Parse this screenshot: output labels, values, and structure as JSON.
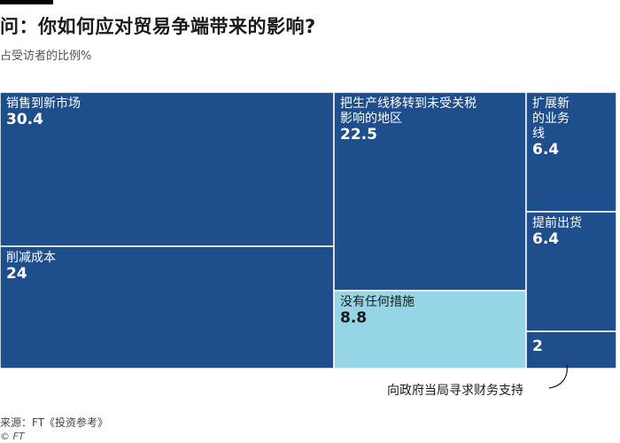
{
  "header": {
    "title": "问：你如何应对贸易争端带来的影响?",
    "subtitle": "占受访者的比例%"
  },
  "chart_data": {
    "type": "treemap",
    "title": "问：你如何应对贸易争端带来的影响?",
    "subtitle": "占受访者的比例%",
    "items": [
      {
        "name": "销售到新市场",
        "value": 30.4,
        "color": "#1f4e8c"
      },
      {
        "name": "削减成本",
        "value": 24,
        "color": "#1f4e8c"
      },
      {
        "name": "把生产线移转到未受关税影响的地区",
        "value": 22.5,
        "color": "#1f4e8c"
      },
      {
        "name": "没有任何措施",
        "value": 8.8,
        "color": "#96d5e6"
      },
      {
        "name": "扩展新的业务线",
        "value": 6.4,
        "color": "#1f4e8c"
      },
      {
        "name": "提前出货",
        "value": 6.4,
        "color": "#1f4e8c"
      },
      {
        "name": "向政府当局寻求财务支持",
        "value": 2,
        "color": "#1f4e8c"
      }
    ],
    "display_values": [
      "30.4",
      "24",
      "22.5",
      "8.8",
      "6.4",
      "6.4",
      "2"
    ],
    "label_lines": [
      [
        "销售到新市场"
      ],
      [
        "削减成本"
      ],
      [
        "把生产线移转到未受关税",
        "影响的地区"
      ],
      [
        "没有任何措施"
      ],
      [
        "扩展新",
        "的业务",
        "线"
      ],
      [
        "提前出货"
      ],
      []
    ],
    "annotation": "向政府当局寻求财务支持"
  },
  "footer": {
    "source": "来源：FT《投资参考》",
    "copyright": "© FT"
  }
}
